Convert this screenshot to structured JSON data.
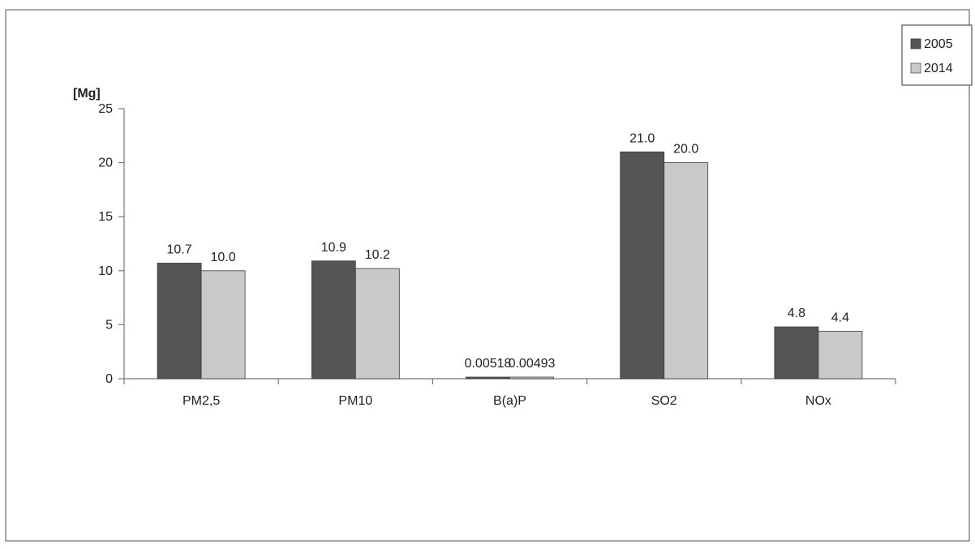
{
  "chart_data": {
    "type": "bar",
    "ylabel": "[Mg]",
    "categories": [
      "PM2,5",
      "PM10",
      "B(a)P",
      "SO2",
      "NOx"
    ],
    "series": [
      {
        "name": "2005",
        "values": [
          10.7,
          10.9,
          0.00518,
          21.0,
          4.8
        ],
        "labels": [
          "10.7",
          "10.9",
          "0.00518",
          "21.0",
          "4.8"
        ],
        "color": "#555555"
      },
      {
        "name": "2014",
        "values": [
          10.0,
          10.2,
          0.00493,
          20.0,
          4.4
        ],
        "labels": [
          "10.0",
          "10.2",
          "0.00493",
          "20.0",
          "4.4"
        ],
        "color": "#c9c9c9"
      }
    ],
    "ylim": [
      0,
      25
    ],
    "yticks": [
      "0",
      "5",
      "10",
      "15",
      "20",
      "25"
    ],
    "grid": false,
    "legend_position": "top-right"
  }
}
